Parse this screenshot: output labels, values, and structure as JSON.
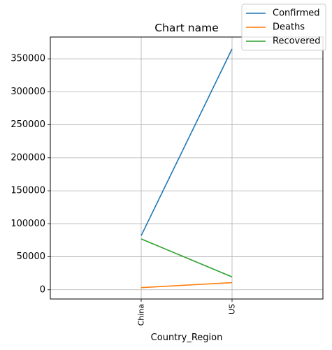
{
  "chart_data": {
    "type": "line",
    "title": "Chart name",
    "xlabel": "Country_Region",
    "ylabel": "",
    "categories": [
      "China",
      "US"
    ],
    "series": [
      {
        "name": "Confirmed",
        "color": "#1f77b4",
        "values": [
          82000,
          365000
        ]
      },
      {
        "name": "Deaths",
        "color": "#ff7f0e",
        "values": [
          3300,
          10800
        ]
      },
      {
        "name": "Recovered",
        "color": "#2ca02c",
        "values": [
          77000,
          19500
        ]
      }
    ],
    "ylim": [
      -14000,
      383000
    ],
    "yticks": [
      0,
      50000,
      100000,
      150000,
      200000,
      250000,
      300000,
      350000
    ],
    "ytick_labels": [
      "0",
      "50000",
      "100000",
      "150000",
      "200000",
      "250000",
      "300000",
      "350000"
    ],
    "xtick_rotation": "vertical",
    "grid": true,
    "legend": "top-right"
  }
}
